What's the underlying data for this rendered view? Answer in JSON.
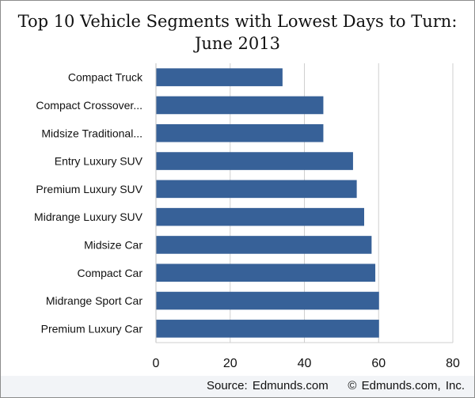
{
  "chart_data": {
    "type": "bar",
    "orientation": "horizontal",
    "title": "Top 10 Vehicle Segments with Lowest Days to Turn: June 2013",
    "title_lines": [
      "Top 10 Vehicle Segments with Lowest Days to Turn:",
      "June 2013"
    ],
    "categories": [
      "Compact Truck",
      "Compact Crossover...",
      "Midsize Traditional...",
      "Entry Luxury SUV",
      "Premium Luxury SUV",
      "Midrange Luxury SUV",
      "Midsize Car",
      "Compact Car",
      "Midrange Sport Car",
      "Premium Luxury Car"
    ],
    "values": [
      34,
      45,
      45,
      53,
      54,
      56,
      58,
      59,
      60,
      60
    ],
    "xlabel": "",
    "ylabel": "",
    "xlim": [
      0,
      80
    ],
    "xticks": [
      0,
      20,
      40,
      60,
      80
    ],
    "grid": true,
    "legend": "none",
    "bar_color": "#376198",
    "grid_color": "#cfcfcf"
  },
  "footer": {
    "source": "Source: Edmunds.com",
    "copyright": "© Edmunds.com, Inc."
  }
}
